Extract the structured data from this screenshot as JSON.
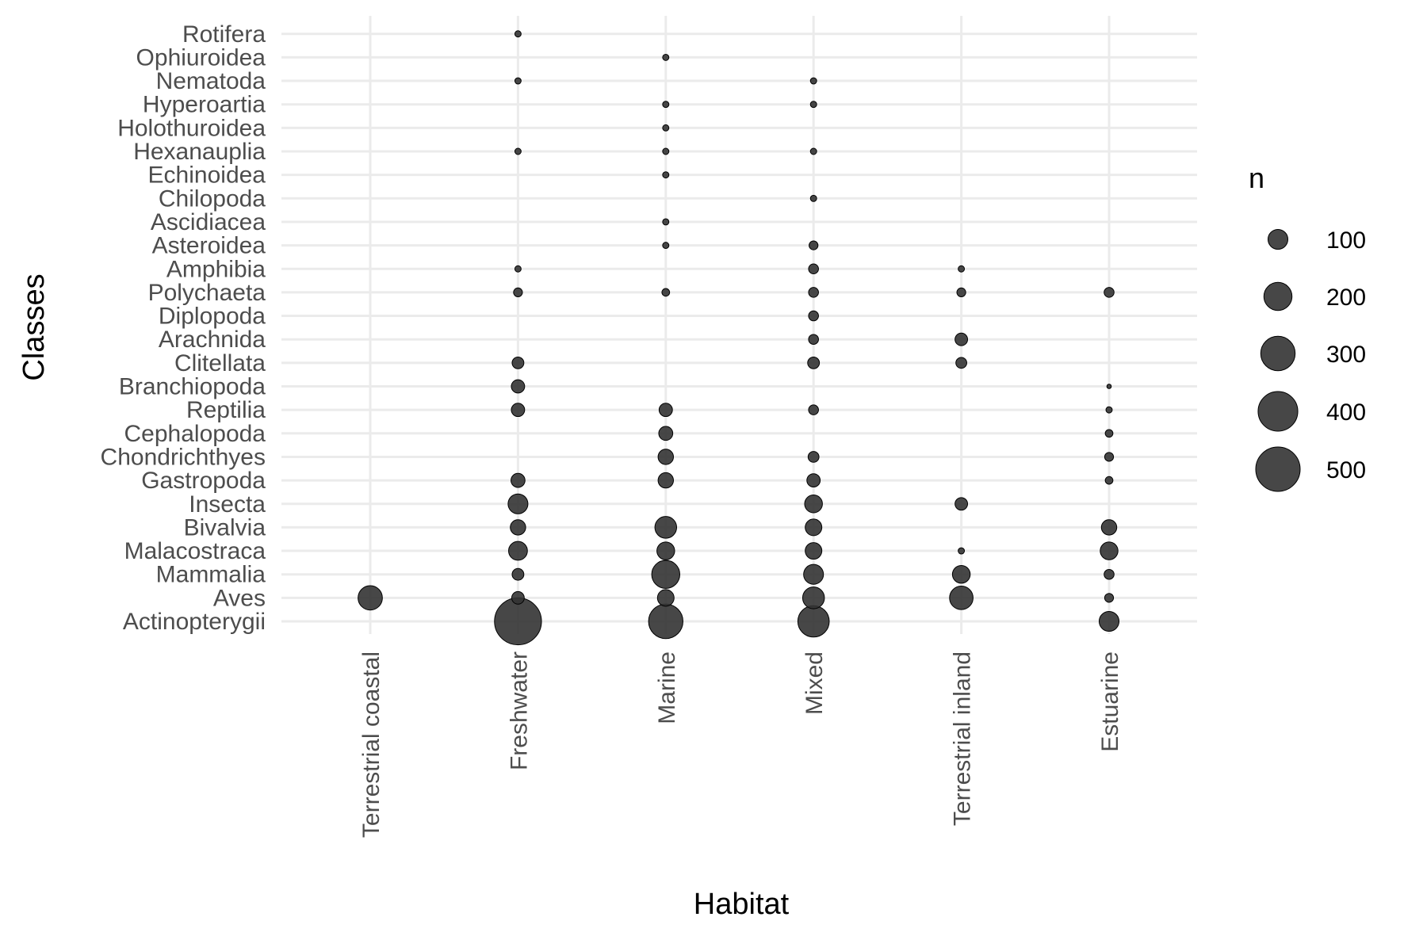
{
  "chart_data": {
    "type": "scatter",
    "xlabel": "Habitat",
    "ylabel": "Classes",
    "x_categories": [
      "Terrestrial coastal",
      "Freshwater",
      "Marine",
      "Mixed",
      "Terrestrial inland",
      "Estuarine"
    ],
    "y_categories": [
      "Actinopterygii",
      "Aves",
      "Mammalia",
      "Malacostraca",
      "Bivalvia",
      "Insecta",
      "Gastropoda",
      "Chondrichthyes",
      "Cephalopoda",
      "Reptilia",
      "Branchiopoda",
      "Clitellata",
      "Arachnida",
      "Diplopoda",
      "Polychaeta",
      "Amphibia",
      "Asteroidea",
      "Ascidiacea",
      "Chilopoda",
      "Echinoidea",
      "Hexanauplia",
      "Holothuroidea",
      "Hyperoartia",
      "Nematoda",
      "Ophiuroidea",
      "Rotifera"
    ],
    "size_legend": {
      "title": "n",
      "breaks": [
        100,
        200,
        300,
        400,
        500
      ],
      "labels": [
        "100",
        "200",
        "300",
        "400",
        "500"
      ]
    },
    "grid": true,
    "legend_position": "right",
    "point_color": "#333333",
    "points": [
      {
        "x": "Terrestrial coastal",
        "y": "Aves",
        "n": 150
      },
      {
        "x": "Freshwater",
        "y": "Actinopterygii",
        "n": 560
      },
      {
        "x": "Freshwater",
        "y": "Aves",
        "n": 40
      },
      {
        "x": "Freshwater",
        "y": "Mammalia",
        "n": 35
      },
      {
        "x": "Freshwater",
        "y": "Malacostraca",
        "n": 90
      },
      {
        "x": "Freshwater",
        "y": "Bivalvia",
        "n": 60
      },
      {
        "x": "Freshwater",
        "y": "Insecta",
        "n": 100
      },
      {
        "x": "Freshwater",
        "y": "Gastropoda",
        "n": 50
      },
      {
        "x": "Freshwater",
        "y": "Reptilia",
        "n": 45
      },
      {
        "x": "Freshwater",
        "y": "Branchiopoda",
        "n": 45
      },
      {
        "x": "Freshwater",
        "y": "Clitellata",
        "n": 35
      },
      {
        "x": "Freshwater",
        "y": "Polychaeta",
        "n": 20
      },
      {
        "x": "Freshwater",
        "y": "Amphibia",
        "n": 10
      },
      {
        "x": "Freshwater",
        "y": "Hexanauplia",
        "n": 10
      },
      {
        "x": "Freshwater",
        "y": "Nematoda",
        "n": 10
      },
      {
        "x": "Freshwater",
        "y": "Rotifera",
        "n": 10
      },
      {
        "x": "Marine",
        "y": "Actinopterygii",
        "n": 300
      },
      {
        "x": "Marine",
        "y": "Aves",
        "n": 70
      },
      {
        "x": "Marine",
        "y": "Mammalia",
        "n": 200
      },
      {
        "x": "Marine",
        "y": "Malacostraca",
        "n": 80
      },
      {
        "x": "Marine",
        "y": "Bivalvia",
        "n": 120
      },
      {
        "x": "Marine",
        "y": "Gastropoda",
        "n": 60
      },
      {
        "x": "Marine",
        "y": "Chondrichthyes",
        "n": 60
      },
      {
        "x": "Marine",
        "y": "Cephalopoda",
        "n": 50
      },
      {
        "x": "Marine",
        "y": "Reptilia",
        "n": 45
      },
      {
        "x": "Marine",
        "y": "Polychaeta",
        "n": 15
      },
      {
        "x": "Marine",
        "y": "Asteroidea",
        "n": 10
      },
      {
        "x": "Marine",
        "y": "Ascidiacea",
        "n": 10
      },
      {
        "x": "Marine",
        "y": "Echinoidea",
        "n": 10
      },
      {
        "x": "Marine",
        "y": "Hexanauplia",
        "n": 10
      },
      {
        "x": "Marine",
        "y": "Holothuroidea",
        "n": 10
      },
      {
        "x": "Marine",
        "y": "Hyperoartia",
        "n": 10
      },
      {
        "x": "Marine",
        "y": "Ophiuroidea",
        "n": 10
      },
      {
        "x": "Mixed",
        "y": "Actinopterygii",
        "n": 250
      },
      {
        "x": "Mixed",
        "y": "Aves",
        "n": 120
      },
      {
        "x": "Mixed",
        "y": "Mammalia",
        "n": 100
      },
      {
        "x": "Mixed",
        "y": "Malacostraca",
        "n": 70
      },
      {
        "x": "Mixed",
        "y": "Bivalvia",
        "n": 70
      },
      {
        "x": "Mixed",
        "y": "Insecta",
        "n": 80
      },
      {
        "x": "Mixed",
        "y": "Gastropoda",
        "n": 45
      },
      {
        "x": "Mixed",
        "y": "Chondrichthyes",
        "n": 30
      },
      {
        "x": "Mixed",
        "y": "Reptilia",
        "n": 25
      },
      {
        "x": "Mixed",
        "y": "Clitellata",
        "n": 35
      },
      {
        "x": "Mixed",
        "y": "Arachnida",
        "n": 25
      },
      {
        "x": "Mixed",
        "y": "Diplopoda",
        "n": 25
      },
      {
        "x": "Mixed",
        "y": "Polychaeta",
        "n": 25
      },
      {
        "x": "Mixed",
        "y": "Amphibia",
        "n": 25
      },
      {
        "x": "Mixed",
        "y": "Asteroidea",
        "n": 20
      },
      {
        "x": "Mixed",
        "y": "Chilopoda",
        "n": 10
      },
      {
        "x": "Mixed",
        "y": "Hexanauplia",
        "n": 10
      },
      {
        "x": "Mixed",
        "y": "Hyperoartia",
        "n": 10
      },
      {
        "x": "Mixed",
        "y": "Nematoda",
        "n": 10
      },
      {
        "x": "Terrestrial inland",
        "y": "Aves",
        "n": 140
      },
      {
        "x": "Terrestrial inland",
        "y": "Mammalia",
        "n": 80
      },
      {
        "x": "Terrestrial inland",
        "y": "Malacostraca",
        "n": 10
      },
      {
        "x": "Terrestrial inland",
        "y": "Insecta",
        "n": 40
      },
      {
        "x": "Terrestrial inland",
        "y": "Clitellata",
        "n": 30
      },
      {
        "x": "Terrestrial inland",
        "y": "Arachnida",
        "n": 40
      },
      {
        "x": "Terrestrial inland",
        "y": "Polychaeta",
        "n": 20
      },
      {
        "x": "Terrestrial inland",
        "y": "Amphibia",
        "n": 10
      },
      {
        "x": "Estuarine",
        "y": "Actinopterygii",
        "n": 100
      },
      {
        "x": "Estuarine",
        "y": "Aves",
        "n": 20
      },
      {
        "x": "Estuarine",
        "y": "Mammalia",
        "n": 25
      },
      {
        "x": "Estuarine",
        "y": "Malacostraca",
        "n": 80
      },
      {
        "x": "Estuarine",
        "y": "Bivalvia",
        "n": 60
      },
      {
        "x": "Estuarine",
        "y": "Gastropoda",
        "n": 15
      },
      {
        "x": "Estuarine",
        "y": "Chondrichthyes",
        "n": 20
      },
      {
        "x": "Estuarine",
        "y": "Cephalopoda",
        "n": 15
      },
      {
        "x": "Estuarine",
        "y": "Reptilia",
        "n": 10
      },
      {
        "x": "Estuarine",
        "y": "Branchiopoda",
        "n": 5
      },
      {
        "x": "Estuarine",
        "y": "Polychaeta",
        "n": 25
      }
    ]
  }
}
